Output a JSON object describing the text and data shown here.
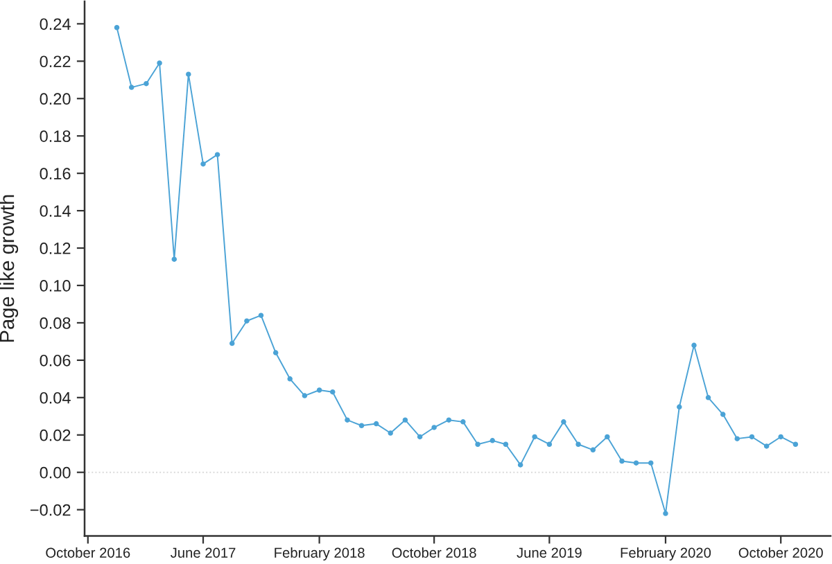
{
  "chart_data": {
    "type": "line",
    "ylabel": "Page like growth",
    "x": [
      "2016-12",
      "2017-01",
      "2017-02",
      "2017-03",
      "2017-04",
      "2017-05",
      "2017-06",
      "2017-07",
      "2017-08",
      "2017-09",
      "2017-10",
      "2017-11",
      "2017-12",
      "2018-01",
      "2018-02",
      "2018-03",
      "2018-04",
      "2018-05",
      "2018-06",
      "2018-07",
      "2018-08",
      "2018-09",
      "2018-10",
      "2018-11",
      "2018-12",
      "2019-01",
      "2019-02",
      "2019-03",
      "2019-04",
      "2019-05",
      "2019-06",
      "2019-07",
      "2019-08",
      "2019-09",
      "2019-10",
      "2019-11",
      "2019-12",
      "2020-01",
      "2020-02",
      "2020-03",
      "2020-04",
      "2020-05",
      "2020-06",
      "2020-07",
      "2020-08",
      "2020-09",
      "2020-10",
      "2020-11"
    ],
    "series": [
      {
        "color": "#4ba3d6",
        "values": [
          0.238,
          0.206,
          0.208,
          0.219,
          0.114,
          0.213,
          0.165,
          0.17,
          0.069,
          0.081,
          0.084,
          0.064,
          0.05,
          0.041,
          0.044,
          0.043,
          0.028,
          0.025,
          0.026,
          0.021,
          0.028,
          0.019,
          0.024,
          0.028,
          0.027,
          0.015,
          0.017,
          0.015,
          0.004,
          0.019,
          0.015,
          0.027,
          0.015,
          0.012,
          0.019,
          0.006,
          0.005,
          0.005,
          -0.022,
          0.035,
          0.068,
          0.04,
          0.031,
          0.018,
          0.019,
          0.014,
          0.019,
          0.015
        ]
      }
    ],
    "marker": "circle",
    "line_style": "solid",
    "grid": false,
    "ref_lines": [
      {
        "axis": "y",
        "value": 0,
        "color": "#d9d9d9",
        "line_style": "dotted"
      }
    ],
    "xlim": [
      "2016-09-24",
      "2021-01-14"
    ],
    "xticks": [
      {
        "value": "2016-10",
        "label": "October 2016"
      },
      {
        "value": "2017-06",
        "label": "June 2017"
      },
      {
        "value": "2018-02",
        "label": "February 2018"
      },
      {
        "value": "2018-10",
        "label": "October 2018"
      },
      {
        "value": "2019-06",
        "label": "June 2019"
      },
      {
        "value": "2020-02",
        "label": "February 2020"
      },
      {
        "value": "2020-10",
        "label": "October 2020"
      }
    ],
    "ylim": [
      -0.034,
      0.252
    ],
    "yticks": [
      {
        "value": -0.02,
        "label": "−0.02"
      },
      {
        "value": 0,
        "label": "0.00"
      },
      {
        "value": 0.02,
        "label": "0.02"
      },
      {
        "value": 0.04,
        "label": "0.04"
      },
      {
        "value": 0.06,
        "label": "0.06"
      },
      {
        "value": 0.08,
        "label": "0.08"
      },
      {
        "value": 0.1,
        "label": "0.10"
      },
      {
        "value": 0.12,
        "label": "0.12"
      },
      {
        "value": 0.14,
        "label": "0.14"
      },
      {
        "value": 0.16,
        "label": "0.16"
      },
      {
        "value": 0.18,
        "label": "0.18"
      },
      {
        "value": 0.2,
        "label": "0.20"
      },
      {
        "value": 0.22,
        "label": "0.22"
      },
      {
        "value": 0.24,
        "label": "0.24"
      }
    ]
  }
}
